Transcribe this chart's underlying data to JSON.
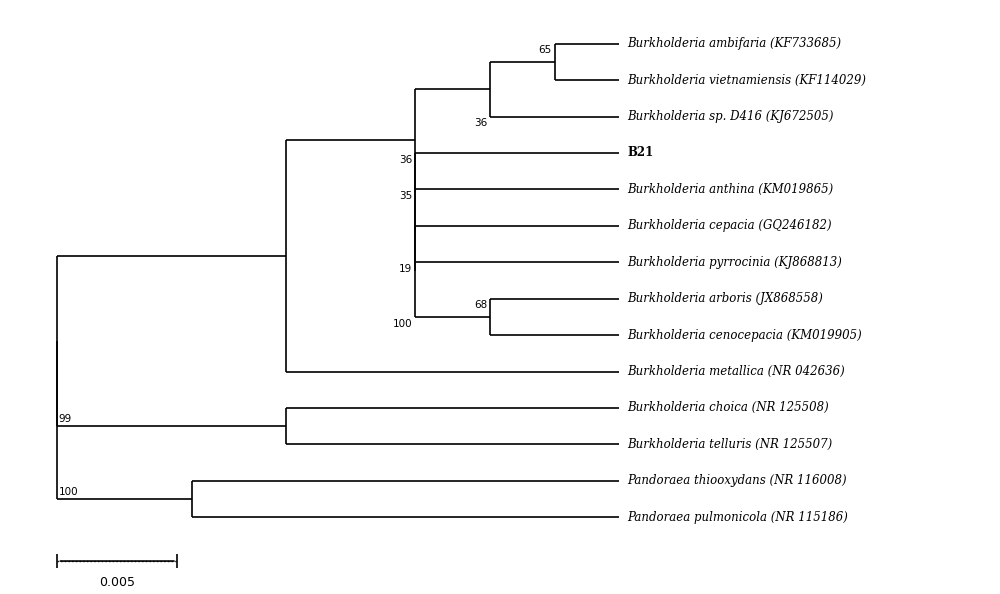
{
  "taxa": [
    "Burkholderia ambifaria (KF733685)",
    "Burkholderia vietnamiensis (KF114029)",
    "Burkholderia sp. D416 (KJ672505)",
    "B21",
    "Burkholderia anthina (KM019865)",
    "Burkholderia cepacia (GQ246182)",
    "Burkholderia pyrrocinia (KJ868813)",
    "Burkholderia arboris (JX868558)",
    "Burkholderia cenocepacia (KM019905)",
    "Burkholderia metallica (NR 042636)",
    "Burkholderia choica (NR 125508)",
    "Burkholderia telluris (NR 125507)",
    "Pandoraea thiooxydans (NR 116008)",
    "Pandoraea pulmonicola (NR 115186)"
  ],
  "bold_taxa": [
    "B21"
  ],
  "italic_taxa": [
    "Burkholderia ambifaria (KF733685)",
    "Burkholderia vietnamiensis (KF114029)",
    "Burkholderia sp. D416 (KJ672505)",
    "Burkholderia anthina (KM019865)",
    "Burkholderia cepacia (GQ246182)",
    "Burkholderia pyrrocinia (KJ868813)",
    "Burkholderia arboris (JX868558)",
    "Burkholderia cenocepacia (KM019905)",
    "Burkholderia metallica (NR 042636)",
    "Burkholderia choica (NR 125508)",
    "Burkholderia telluris (NR 125507)",
    "Pandoraea thiooxydans (NR 116008)",
    "Pandoraea pulmonicola (NR 115186)"
  ],
  "background_color": "#ffffff",
  "line_color": "#000000",
  "text_color": "#000000",
  "scale_bar_value": "0.005",
  "scale_bar_label": "0.005"
}
